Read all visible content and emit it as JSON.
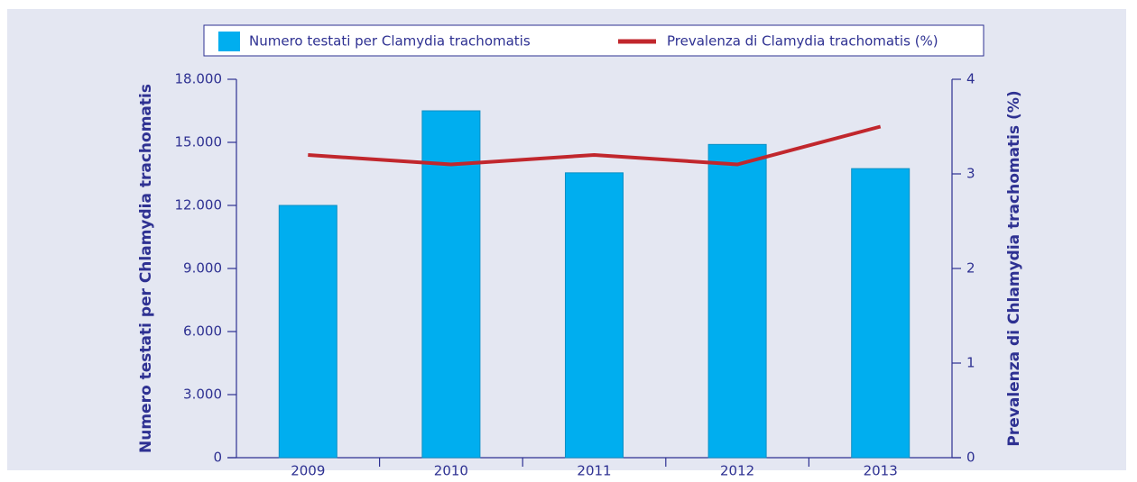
{
  "chart_data": {
    "type": "bar_line",
    "categories": [
      "2009",
      "2010",
      "2011",
      "2012",
      "2013"
    ],
    "series": [
      {
        "name": "Numero testati per Clamydia trachomatis",
        "type": "bar",
        "color": "#00aeef",
        "values": [
          12000,
          16500,
          13550,
          14900,
          13750
        ]
      },
      {
        "name": "Prevalenza di Clamydia trachomatis (%)",
        "type": "line",
        "color": "#c1272d",
        "axis": "y2",
        "values": [
          3.2,
          3.1,
          3.2,
          3.1,
          3.5
        ]
      }
    ],
    "ylabel": "Numero testati per Chlamydia trachomatis",
    "y2label": "Prevalenza di Chlamydia trachomatis (%)",
    "ylim": [
      0,
      18000
    ],
    "yticks": [
      0,
      {
        "value": 3000,
        "label": "3.000"
      },
      {
        "value": 6000,
        "label": "6.000"
      },
      {
        "value": 9000,
        "label": "9.000"
      },
      {
        "value": 12000,
        "label": "12.000"
      },
      {
        "value": 15000,
        "label": "15.000"
      },
      {
        "value": 18000,
        "label": "18.000"
      }
    ],
    "y2lim": [
      0,
      4
    ],
    "y2ticks": [
      0,
      1,
      2,
      3,
      4
    ],
    "legend": "top"
  }
}
